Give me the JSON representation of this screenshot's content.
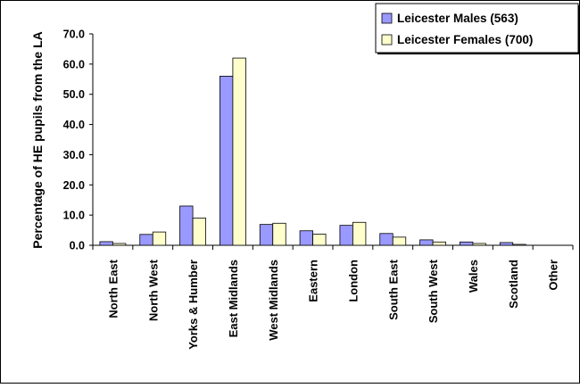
{
  "chart_data": {
    "type": "bar",
    "title": "",
    "xlabel": "",
    "ylabel": "Percentage of HE pupils from the LA",
    "ylim": [
      0,
      70
    ],
    "y_ticks": [
      "0.0",
      "10.0",
      "20.0",
      "30.0",
      "40.0",
      "50.0",
      "60.0",
      "70.0"
    ],
    "y_tick_values": [
      0,
      10,
      20,
      30,
      40,
      50,
      60,
      70
    ],
    "grid": false,
    "legend_position": "top-right",
    "categories": [
      "North East",
      "North West",
      "Yorks & Humber",
      "East Midlands",
      "West Midlands",
      "Eastern",
      "London",
      "South East",
      "South West",
      "Wales",
      "Scotland",
      "Other"
    ],
    "series": [
      {
        "name": "Leicester Males (563)",
        "color": "#9999FF",
        "values": [
          1.2,
          3.6,
          13.0,
          56.0,
          6.9,
          4.8,
          6.6,
          3.9,
          1.8,
          1.1,
          0.9,
          0.0
        ]
      },
      {
        "name": "Leicester Females (700)",
        "color": "#FFFFCC",
        "values": [
          0.6,
          4.4,
          9.0,
          62.0,
          7.3,
          3.7,
          7.6,
          2.7,
          1.1,
          0.6,
          0.3,
          0.0
        ]
      }
    ]
  }
}
